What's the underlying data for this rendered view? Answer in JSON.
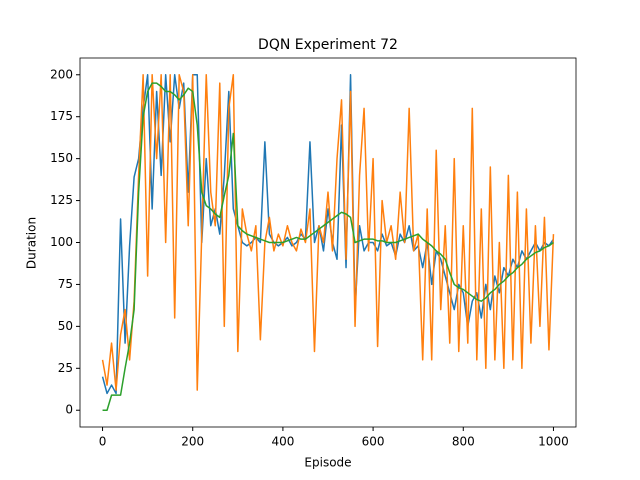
{
  "chart_data": {
    "type": "line",
    "title": "DQN Experiment 72",
    "x_label": "Episode",
    "y_label": "Duration",
    "x": [
      0,
      10,
      20,
      30,
      40,
      50,
      60,
      70,
      80,
      90,
      100,
      110,
      120,
      130,
      140,
      150,
      160,
      170,
      180,
      190,
      200,
      210,
      220,
      230,
      240,
      250,
      260,
      270,
      280,
      290,
      300,
      310,
      320,
      330,
      340,
      350,
      360,
      370,
      380,
      390,
      400,
      410,
      420,
      430,
      440,
      450,
      460,
      470,
      480,
      490,
      500,
      510,
      520,
      530,
      540,
      550,
      560,
      570,
      580,
      590,
      600,
      610,
      620,
      630,
      640,
      650,
      660,
      670,
      680,
      690,
      700,
      710,
      720,
      730,
      740,
      750,
      760,
      770,
      780,
      790,
      800,
      810,
      820,
      830,
      840,
      850,
      860,
      870,
      880,
      890,
      900,
      910,
      920,
      930,
      940,
      950,
      960,
      970,
      980,
      990,
      1000
    ],
    "series": [
      {
        "color": "#1f77b4",
        "values": [
          20,
          10,
          15,
          10,
          114,
          40,
          98,
          139,
          150,
          180,
          200,
          120,
          190,
          140,
          200,
          160,
          200,
          180,
          195,
          130,
          200,
          200,
          100,
          150,
          110,
          120,
          105,
          140,
          190,
          120,
          110,
          100,
          98,
          100,
          103,
          100,
          160,
          105,
          100,
          98,
          100,
          103,
          98,
          100,
          105,
          102,
          160,
          100,
          110,
          95,
          120,
          100,
          90,
          170,
          85,
          200,
          60,
          110,
          95,
          100,
          100,
          95,
          105,
          98,
          100,
          92,
          105,
          100,
          110,
          95,
          98,
          85,
          100,
          75,
          95,
          90,
          80,
          70,
          60,
          75,
          70,
          50,
          65,
          70,
          55,
          75,
          60,
          80,
          70,
          85,
          80,
          90,
          85,
          95,
          90,
          95,
          100,
          95,
          100,
          98,
          102
        ]
      },
      {
        "color": "#ff7f0e",
        "values": [
          30,
          15,
          40,
          12,
          45,
          60,
          30,
          65,
          140,
          200,
          80,
          200,
          150,
          200,
          100,
          200,
          55,
          200,
          190,
          110,
          200,
          12,
          105,
          200,
          130,
          110,
          195,
          50,
          180,
          200,
          35,
          120,
          105,
          95,
          110,
          42,
          100,
          115,
          95,
          105,
          98,
          110,
          100,
          95,
          108,
          100,
          120,
          35,
          110,
          100,
          130,
          95,
          150,
          185,
          90,
          190,
          50,
          140,
          180,
          95,
          150,
          38,
          125,
          100,
          110,
          90,
          130,
          100,
          180,
          95,
          105,
          30,
          120,
          30,
          155,
          60,
          110,
          40,
          150,
          35,
          110,
          40,
          180,
          30,
          120,
          25,
          145,
          30,
          100,
          25,
          140,
          30,
          130,
          25,
          120,
          40,
          110,
          50,
          115,
          36,
          105
        ]
      },
      {
        "color": "#2ca02c",
        "values": [
          0,
          0,
          9,
          9,
          9,
          25,
          40,
          60,
          130,
          175,
          190,
          195,
          195,
          193,
          190,
          190,
          188,
          185,
          188,
          192,
          190,
          170,
          130,
          122,
          120,
          117,
          115,
          128,
          140,
          165,
          110,
          107,
          105,
          104,
          103,
          102,
          101,
          100,
          100,
          100,
          100,
          101,
          102,
          103,
          102,
          102,
          104,
          106,
          108,
          110,
          112,
          114,
          116,
          118,
          117,
          115,
          100,
          101,
          102,
          102,
          102,
          101,
          101,
          100,
          100,
          100,
          101,
          102,
          103,
          104,
          105,
          102,
          100,
          98,
          95,
          93,
          90,
          82,
          75,
          73,
          72,
          70,
          68,
          66,
          65,
          67,
          70,
          72,
          75,
          77,
          80,
          82,
          85,
          87,
          90,
          92,
          94,
          95,
          97,
          98,
          100
        ]
      }
    ],
    "xlim": [
      -50,
      1050
    ],
    "ylim": [
      -10,
      210
    ],
    "xticks": [
      0,
      200,
      400,
      600,
      800,
      1000
    ],
    "yticks": [
      0,
      25,
      50,
      75,
      100,
      125,
      150,
      175,
      200
    ],
    "grid": false
  }
}
